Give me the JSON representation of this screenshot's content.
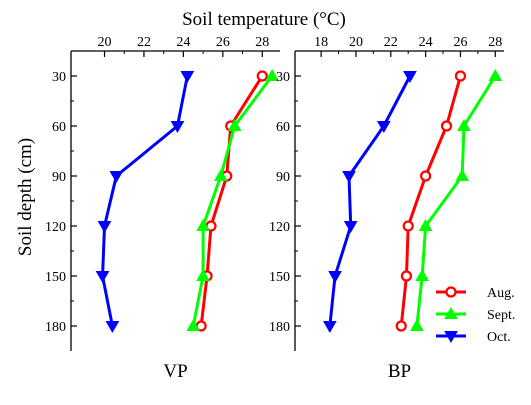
{
  "chart_data": {
    "type": "line",
    "title": "Soil temperature (°C)",
    "ylabel": "Soil depth  (cm)",
    "depths": [
      30,
      60,
      90,
      120,
      150,
      180
    ],
    "ylim": [
      15,
      195
    ],
    "yticks": [
      "30",
      "60",
      "90",
      "120",
      "150",
      "180"
    ],
    "legend": {
      "placement": "bottom-right"
    },
    "panels": [
      {
        "label": "VP",
        "xlim": [
          18.3,
          28.9
        ],
        "xticks": [
          20,
          22,
          24,
          26,
          28
        ],
        "xtick_labels": [
          "20",
          "22",
          "24",
          "26",
          "28"
        ],
        "series": [
          {
            "name": "Aug.",
            "color": "#ff0000",
            "marker": "circle",
            "values": [
              28.0,
              26.4,
              26.2,
              25.4,
              25.2,
              24.9
            ]
          },
          {
            "name": "Sept.",
            "color": "#00ff00",
            "marker": "triangle-up",
            "values": [
              28.5,
              26.6,
              25.9,
              25.0,
              25.0,
              24.5
            ]
          },
          {
            "name": "Oct.",
            "color": "#0000ff",
            "marker": "triangle-down",
            "values": [
              24.2,
              23.7,
              20.6,
              20.0,
              19.9,
              20.4
            ]
          }
        ]
      },
      {
        "label": "BP",
        "xlim": [
          16.5,
          28.5
        ],
        "xticks": [
          18,
          20,
          22,
          24,
          26,
          28
        ],
        "xtick_labels": [
          "18",
          "20",
          "22",
          "24",
          "26",
          "28"
        ],
        "series": [
          {
            "name": "Aug.",
            "color": "#ff0000",
            "marker": "circle",
            "values": [
              26.0,
              25.2,
              24.0,
              23.0,
              22.9,
              22.6
            ]
          },
          {
            "name": "Sept.",
            "color": "#00ff00",
            "marker": "triangle-up",
            "values": [
              28.0,
              26.2,
              26.1,
              24.0,
              23.8,
              23.5
            ]
          },
          {
            "name": "Oct.",
            "color": "#0000ff",
            "marker": "triangle-down",
            "values": [
              23.1,
              21.6,
              19.6,
              19.7,
              18.8,
              18.5
            ]
          }
        ]
      }
    ]
  }
}
